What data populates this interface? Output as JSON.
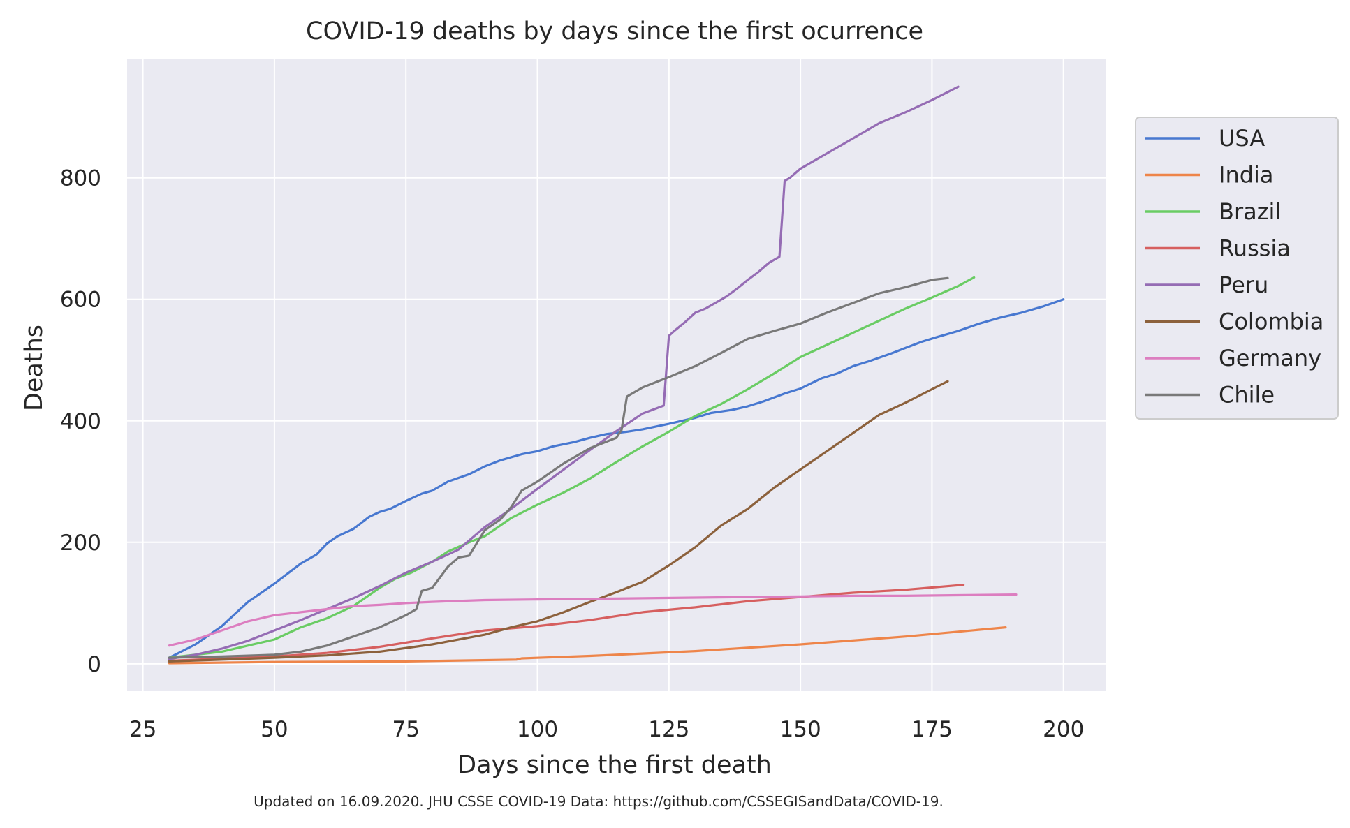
{
  "chart_data": {
    "type": "line",
    "title": "COVID-19 deaths by days since the first ocurrence",
    "xlabel": "Days since the first death",
    "ylabel": "Deaths",
    "footnote": "Updated on 16.09.2020. JHU CSSE COVID-19 Data: https://github.com/CSSEGISandData/COVID-19.",
    "xlim": [
      22,
      208
    ],
    "ylim": [
      -45,
      995
    ],
    "xticks": [
      25,
      50,
      75,
      100,
      125,
      150,
      175,
      200
    ],
    "yticks": [
      0,
      200,
      400,
      600,
      800
    ],
    "grid": true,
    "legend_position": "right",
    "series": [
      {
        "name": "USA",
        "color": "#4878d0",
        "x": [
          30,
          35,
          40,
          45,
          50,
          55,
          58,
          60,
          62,
          65,
          68,
          70,
          72,
          75,
          78,
          80,
          83,
          87,
          90,
          93,
          97,
          100,
          103,
          107,
          110,
          113,
          117,
          120,
          125,
          130,
          133,
          137,
          140,
          143,
          147,
          150,
          154,
          157,
          160,
          163,
          167,
          170,
          173,
          176,
          180,
          184,
          188,
          192,
          196,
          200
        ],
        "y": [
          10,
          32,
          62,
          102,
          132,
          165,
          180,
          198,
          210,
          222,
          242,
          250,
          255,
          268,
          280,
          285,
          300,
          312,
          325,
          335,
          345,
          350,
          358,
          365,
          372,
          378,
          382,
          386,
          395,
          405,
          413,
          418,
          424,
          432,
          445,
          453,
          470,
          478,
          490,
          498,
          510,
          520,
          530,
          538,
          548,
          560,
          570,
          578,
          588,
          600
        ]
      },
      {
        "name": "India",
        "color": "#ee854a",
        "x": [
          30,
          50,
          75,
          96,
          97,
          110,
          130,
          150,
          170,
          189
        ],
        "y": [
          1,
          3,
          4,
          7,
          9,
          13,
          21,
          32,
          45,
          60
        ]
      },
      {
        "name": "Brazil",
        "color": "#6acc64",
        "x": [
          30,
          40,
          50,
          55,
          60,
          65,
          70,
          73,
          76,
          80,
          83,
          87,
          90,
          95,
          100,
          105,
          110,
          115,
          120,
          125,
          130,
          135,
          140,
          145,
          150,
          155,
          160,
          165,
          170,
          175,
          180,
          183
        ],
        "y": [
          10,
          20,
          40,
          60,
          75,
          95,
          125,
          140,
          150,
          168,
          185,
          200,
          210,
          240,
          262,
          282,
          305,
          332,
          358,
          382,
          408,
          428,
          452,
          478,
          505,
          525,
          545,
          565,
          585,
          603,
          622,
          636
        ]
      },
      {
        "name": "Russia",
        "color": "#d65f5f",
        "x": [
          30,
          50,
          60,
          70,
          80,
          90,
          100,
          110,
          120,
          130,
          140,
          150,
          160,
          170,
          181
        ],
        "y": [
          5,
          12,
          18,
          28,
          42,
          55,
          62,
          72,
          85,
          93,
          103,
          110,
          117,
          122,
          130
        ]
      },
      {
        "name": "Peru",
        "color": "#956cb4",
        "x": [
          30,
          35,
          40,
          45,
          50,
          55,
          60,
          65,
          70,
          75,
          80,
          85,
          90,
          95,
          100,
          105,
          110,
          115,
          120,
          124,
          125,
          126,
          128,
          130,
          132,
          134,
          136,
          138,
          140,
          142,
          144,
          146,
          147,
          148,
          150,
          155,
          160,
          165,
          170,
          175,
          180
        ],
        "y": [
          8,
          15,
          25,
          38,
          55,
          72,
          90,
          108,
          128,
          150,
          168,
          188,
          225,
          255,
          288,
          320,
          352,
          383,
          412,
          425,
          540,
          548,
          562,
          578,
          585,
          595,
          605,
          618,
          632,
          645,
          660,
          670,
          795,
          800,
          815,
          840,
          865,
          890,
          908,
          928,
          950
        ]
      },
      {
        "name": "Colombia",
        "color": "#8c613c",
        "x": [
          30,
          50,
          60,
          70,
          80,
          90,
          95,
          100,
          105,
          110,
          115,
          120,
          125,
          130,
          135,
          140,
          145,
          150,
          155,
          160,
          165,
          170,
          175,
          178
        ],
        "y": [
          4,
          10,
          14,
          20,
          32,
          48,
          60,
          70,
          85,
          102,
          118,
          135,
          162,
          192,
          228,
          255,
          290,
          320,
          350,
          380,
          410,
          430,
          452,
          465
        ]
      },
      {
        "name": "Germany",
        "color": "#dc7ec0",
        "x": [
          30,
          35,
          40,
          45,
          50,
          55,
          60,
          65,
          70,
          75,
          80,
          90,
          100,
          110,
          120,
          130,
          140,
          150,
          160,
          170,
          180,
          191
        ],
        "y": [
          30,
          40,
          55,
          70,
          80,
          85,
          90,
          95,
          97,
          100,
          102,
          105,
          106,
          107,
          108,
          109,
          110,
          111,
          112,
          112,
          113,
          114
        ]
      },
      {
        "name": "Chile",
        "color": "#797979",
        "x": [
          30,
          40,
          50,
          55,
          60,
          65,
          70,
          75,
          77,
          78,
          80,
          83,
          85,
          87,
          90,
          93,
          95,
          97,
          100,
          105,
          110,
          115,
          116,
          117,
          120,
          125,
          130,
          135,
          140,
          145,
          150,
          155,
          160,
          165,
          170,
          175,
          178
        ],
        "y": [
          10,
          12,
          15,
          20,
          30,
          45,
          60,
          80,
          90,
          120,
          125,
          160,
          175,
          178,
          220,
          238,
          258,
          285,
          300,
          330,
          355,
          372,
          385,
          440,
          455,
          472,
          490,
          512,
          535,
          548,
          560,
          578,
          594,
          610,
          620,
          632,
          635
        ]
      }
    ]
  }
}
